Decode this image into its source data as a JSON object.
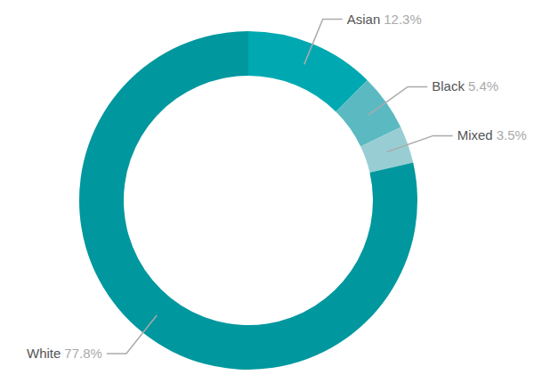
{
  "chart_data": {
    "type": "donut",
    "categories": [
      "Asian",
      "Black",
      "Mixed",
      "White"
    ],
    "values": [
      12.3,
      5.4,
      3.5,
      77.8
    ],
    "value_labels": [
      "12.3%",
      "5.4%",
      "3.5%",
      "77.8%"
    ],
    "colors": [
      "#00a9b1",
      "#5bbac1",
      "#98ced3",
      "#00979e"
    ],
    "data_labels": true
  }
}
